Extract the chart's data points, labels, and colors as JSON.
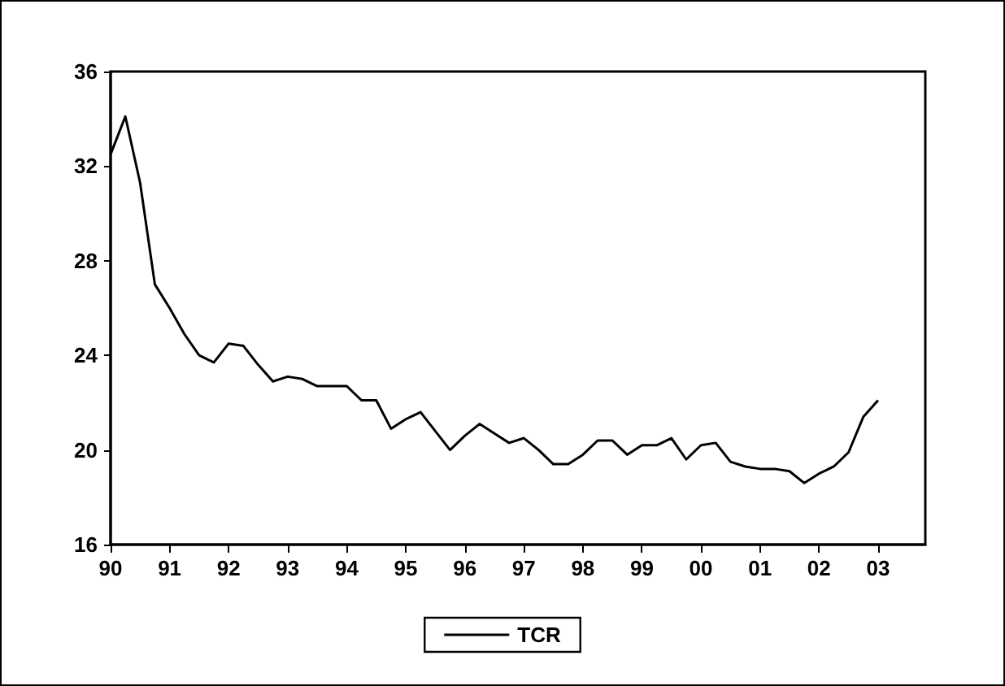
{
  "chart_data": {
    "type": "line",
    "x": [
      1990,
      1990.25,
      1990.5,
      1990.75,
      1991,
      1991.25,
      1991.5,
      1991.75,
      1992,
      1992.25,
      1992.5,
      1992.75,
      1993,
      1993.25,
      1993.5,
      1993.75,
      1994,
      1994.25,
      1994.5,
      1994.75,
      1995,
      1995.25,
      1995.5,
      1995.75,
      1996,
      1996.25,
      1996.5,
      1996.75,
      1997,
      1997.25,
      1997.5,
      1997.75,
      1998,
      1998.25,
      1998.5,
      1998.75,
      1999,
      1999.25,
      1999.5,
      1999.75,
      2000,
      2000.25,
      2000.5,
      2000.75,
      2001,
      2001.25,
      2001.5,
      2001.75,
      2002,
      2002.25,
      2002.5,
      2002.75,
      2003
    ],
    "series": [
      {
        "name": "TCR",
        "color": "#000000",
        "values": [
          32.5,
          34.1,
          31.3,
          27.0,
          26.0,
          24.9,
          24.0,
          23.7,
          24.5,
          24.4,
          23.6,
          22.9,
          23.1,
          23.0,
          22.7,
          22.7,
          22.7,
          22.1,
          22.1,
          20.9,
          21.3,
          21.6,
          20.8,
          20.0,
          20.6,
          21.1,
          20.7,
          20.3,
          20.5,
          20.0,
          19.4,
          19.4,
          19.8,
          20.4,
          20.4,
          19.8,
          20.2,
          20.2,
          20.5,
          19.6,
          20.2,
          20.3,
          19.5,
          19.3,
          19.2,
          19.2,
          19.1,
          18.6,
          19.0,
          19.3,
          19.9,
          21.4,
          22.1
        ]
      }
    ],
    "xlim": [
      1990,
      2003.8
    ],
    "xticks": [
      {
        "value": 1990,
        "label": "90"
      },
      {
        "value": 1991,
        "label": "91"
      },
      {
        "value": 1992,
        "label": "92"
      },
      {
        "value": 1993,
        "label": "93"
      },
      {
        "value": 1994,
        "label": "94"
      },
      {
        "value": 1995,
        "label": "95"
      },
      {
        "value": 1996,
        "label": "96"
      },
      {
        "value": 1997,
        "label": "97"
      },
      {
        "value": 1998,
        "label": "98"
      },
      {
        "value": 1999,
        "label": "99"
      },
      {
        "value": 2000,
        "label": "00"
      },
      {
        "value": 2001,
        "label": "01"
      },
      {
        "value": 2002,
        "label": "02"
      },
      {
        "value": 2003,
        "label": "03"
      }
    ],
    "ylim": [
      16,
      36
    ],
    "yticks": [
      16,
      20,
      24,
      28,
      32,
      36
    ],
    "legend": "bottom",
    "grid": false,
    "marker": "none",
    "line_style": "solid"
  }
}
